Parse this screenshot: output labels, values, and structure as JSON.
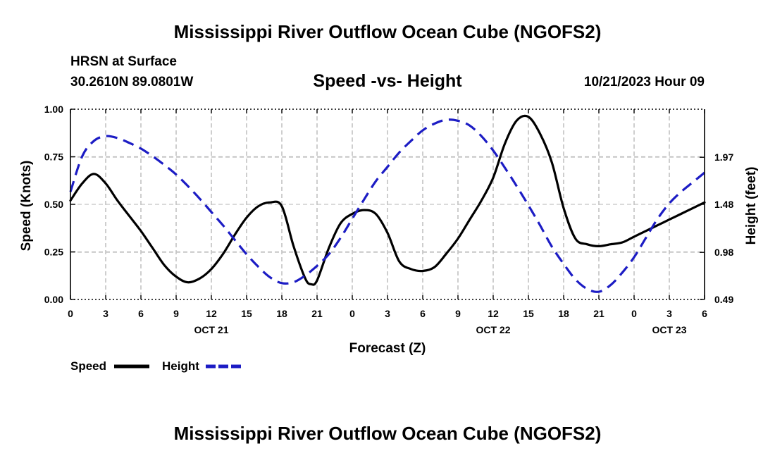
{
  "header": {
    "title": "Mississippi River Outflow Ocean Cube (NGOFS2)",
    "station_name": "HRSN at Surface",
    "station_coords": "30.2610N  89.0801W",
    "subtitle": "Speed -vs- Height",
    "timestamp": "10/21/2023 Hour 09"
  },
  "footer": {
    "title": "Mississippi River Outflow Ocean Cube (NGOFS2)"
  },
  "chart_data": {
    "type": "line",
    "title": "Speed -vs- Height",
    "xlabel": "Forecast (Z)",
    "ylabel": "Speed (Knots)",
    "y2label": "Height (feet)",
    "x_unit": "hours from OCT 21 00Z",
    "xlim": [
      0,
      54
    ],
    "ylim": [
      0,
      1.0
    ],
    "y2lim": [
      0.49,
      2.47
    ],
    "grid": true,
    "x_ticks": [
      0,
      3,
      6,
      9,
      12,
      15,
      18,
      21,
      24,
      27,
      30,
      33,
      36,
      39,
      42,
      45,
      48,
      51,
      54
    ],
    "x_tick_labels": [
      "0",
      "3",
      "6",
      "9",
      "12",
      "15",
      "18",
      "21",
      "0",
      "3",
      "6",
      "9",
      "12",
      "15",
      "18",
      "21",
      "0",
      "3",
      "6"
    ],
    "date_labels": [
      {
        "x": 12,
        "label": "OCT 21"
      },
      {
        "x": 36,
        "label": "OCT 22"
      },
      {
        "x": 51,
        "label": "OCT 23"
      }
    ],
    "y_ticks": [
      0,
      0.25,
      0.5,
      0.75,
      1.0
    ],
    "y_tick_labels": [
      "0.00",
      "0.25",
      "0.50",
      "0.75",
      "1.00"
    ],
    "y2_ticks": [
      0.49,
      0.98,
      1.48,
      1.97
    ],
    "y2_tick_labels": [
      "0.49",
      "0.98",
      "1.48",
      "1.97"
    ],
    "legend": {
      "placement": "bottom-left",
      "speed_label": "Speed",
      "height_label": "Height"
    },
    "series": [
      {
        "name": "Speed",
        "axis": "left",
        "color": "#000000",
        "style": "solid",
        "x": [
          0,
          1,
          2,
          3,
          4,
          5,
          6,
          7,
          8,
          9,
          10,
          11,
          12,
          13,
          14,
          15,
          16,
          17,
          18,
          19,
          20,
          20.5,
          21,
          22,
          23,
          24,
          25,
          26,
          27,
          28,
          29,
          30,
          31,
          32,
          33,
          34,
          35,
          36,
          37,
          38,
          39,
          40,
          41,
          42,
          43,
          44,
          45,
          46,
          47,
          48,
          49,
          50,
          51,
          52,
          53,
          54
        ],
        "values": [
          0.52,
          0.61,
          0.66,
          0.61,
          0.52,
          0.44,
          0.36,
          0.27,
          0.18,
          0.12,
          0.09,
          0.11,
          0.16,
          0.24,
          0.34,
          0.43,
          0.49,
          0.51,
          0.49,
          0.28,
          0.11,
          0.08,
          0.1,
          0.27,
          0.4,
          0.45,
          0.47,
          0.45,
          0.35,
          0.2,
          0.16,
          0.15,
          0.17,
          0.24,
          0.32,
          0.42,
          0.52,
          0.64,
          0.82,
          0.94,
          0.96,
          0.87,
          0.72,
          0.48,
          0.32,
          0.29,
          0.28,
          0.29,
          0.3,
          0.33,
          0.36,
          0.39,
          0.42,
          0.45,
          0.48,
          0.51
        ]
      },
      {
        "name": "Height",
        "axis": "right",
        "color": "#1c1cc4",
        "style": "dashed",
        "x": [
          0,
          1,
          2,
          3,
          4,
          5,
          6,
          7,
          8,
          9,
          10,
          11,
          12,
          13,
          14,
          15,
          16,
          17,
          18,
          19,
          20,
          21,
          22,
          23,
          24,
          25,
          26,
          27,
          28,
          29,
          30,
          31,
          32,
          33,
          34,
          35,
          36,
          37,
          38,
          39,
          40,
          41,
          42,
          43,
          44,
          45,
          46,
          47,
          48,
          49,
          50,
          51,
          52,
          53,
          54
        ],
        "values": [
          1.61,
          1.98,
          2.14,
          2.19,
          2.17,
          2.12,
          2.06,
          1.98,
          1.89,
          1.79,
          1.67,
          1.54,
          1.4,
          1.26,
          1.11,
          0.96,
          0.83,
          0.72,
          0.66,
          0.67,
          0.74,
          0.84,
          0.96,
          1.13,
          1.33,
          1.53,
          1.72,
          1.87,
          2.02,
          2.14,
          2.25,
          2.32,
          2.36,
          2.35,
          2.3,
          2.19,
          2.04,
          1.86,
          1.67,
          1.47,
          1.26,
          1.04,
          0.86,
          0.7,
          0.6,
          0.57,
          0.64,
          0.77,
          0.93,
          1.13,
          1.33,
          1.49,
          1.61,
          1.71,
          1.81
        ]
      }
    ]
  }
}
